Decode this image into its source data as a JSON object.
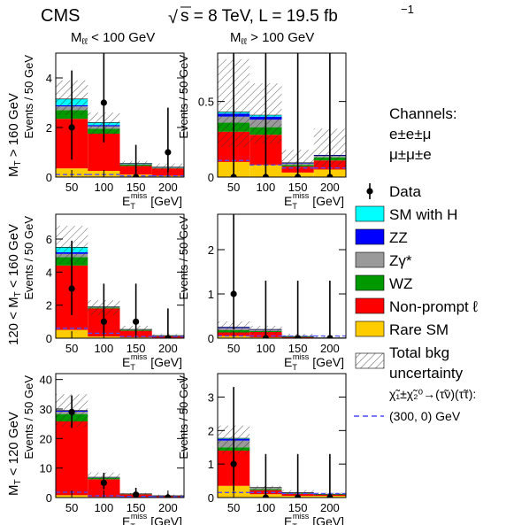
{
  "header": {
    "experiment": "CMS",
    "sqrt_s": "s",
    "energy_lumi": " = 8 TeV, L = 19.5 fb",
    "lumi_exp": "−1"
  },
  "columns": [
    {
      "label_main": "M",
      "label_sub": "ℓℓ",
      "label_rest": " < 100 GeV"
    },
    {
      "label_main": "M",
      "label_sub": "ℓℓ",
      "label_rest": " > 100 GeV"
    }
  ],
  "rows": [
    {
      "label_pre": "M",
      "label_sub": "T",
      "label_post": " > 160 GeV"
    },
    {
      "label_pre": "120 < M",
      "label_sub": "T",
      "label_post": " < 160 GeV"
    },
    {
      "label_pre": "M",
      "label_sub": "T",
      "label_post": " < 120 GeV"
    }
  ],
  "axes": {
    "ylabel": "Events / 50 GeV",
    "xlabel_main": "E",
    "xlabel_sub": "T",
    "xlabel_sup": "miss",
    "xlabel_unit": " [GeV]"
  },
  "channels": {
    "title": "Channels:",
    "line1": "e±e±μ",
    "line2": "μ±μ±e"
  },
  "legend": [
    {
      "key": "data",
      "label": "Data",
      "kind": "marker",
      "color": "#000000"
    },
    {
      "key": "smh",
      "label": "SM with H",
      "kind": "box",
      "color": "#00ffff"
    },
    {
      "key": "zz",
      "label": "ZZ",
      "kind": "box",
      "color": "#0000ff"
    },
    {
      "key": "zg",
      "label": "Zγ*",
      "kind": "box",
      "color": "#9a9a9a"
    },
    {
      "key": "wz",
      "label": "WZ",
      "kind": "box",
      "color": "#009900"
    },
    {
      "key": "np",
      "label": "Non-prompt ℓ",
      "kind": "box",
      "color": "#ff0000"
    },
    {
      "key": "rare",
      "label": "Rare SM",
      "kind": "box",
      "color": "#ffcc00"
    },
    {
      "key": "unc",
      "label": "Total bkg",
      "label2": "uncertainty",
      "kind": "hatch",
      "color": "#000000"
    }
  ],
  "signal": {
    "line1": "χ̃₁±χ̃₂⁰→(τ̃ν)(τ̃τ):",
    "line2": "(300, 0) GeV",
    "color": "#4d4dff"
  },
  "chart_data": {
    "type": "bar",
    "stacked": true,
    "x_bin_edges": [
      25,
      75,
      125,
      175,
      225
    ],
    "x_ticks": [
      50,
      100,
      150,
      200
    ],
    "stack_order": [
      "rare",
      "np",
      "wz",
      "zg",
      "zz",
      "smh"
    ],
    "colors": {
      "rare": "#ffcc00",
      "np": "#ff0000",
      "wz": "#009900",
      "zg": "#9a9a9a",
      "zz": "#0000ff",
      "smh": "#00ffff"
    },
    "panels": [
      {
        "row": 0,
        "col": 0,
        "ylim": [
          0,
          5
        ],
        "yticks": [
          0,
          2,
          4
        ],
        "stack": {
          "rare": [
            0.35,
            0.25,
            0.1,
            0.05
          ],
          "np": [
            2.0,
            1.5,
            0.35,
            0.3
          ],
          "wz": [
            0.35,
            0.2,
            0.05,
            0.02
          ],
          "zg": [
            0.15,
            0.1,
            0.02,
            0.01
          ],
          "zz": [
            0.05,
            0.05,
            0.01,
            0.01
          ],
          "smh": [
            0.25,
            0.1,
            0.02,
            0.01
          ]
        },
        "unc_lo": [
          2.5,
          1.7,
          0.4,
          0.3
        ],
        "unc_hi": [
          3.9,
          2.6,
          0.65,
          0.55
        ],
        "data": [
          2,
          3,
          0,
          1
        ],
        "err_lo": [
          1.3,
          1.6,
          0,
          0.8
        ],
        "err_hi": [
          2.3,
          2.4,
          1.3,
          1.8
        ],
        "signal": [
          0.1,
          0.1,
          0.05,
          0.05
        ]
      },
      {
        "row": 0,
        "col": 1,
        "ylim": [
          0,
          0.82
        ],
        "yticks": [
          0,
          0.5
        ],
        "stack": {
          "rare": [
            0.1,
            0.08,
            0.03,
            0.05
          ],
          "np": [
            0.2,
            0.2,
            0.04,
            0.06
          ],
          "wz": [
            0.06,
            0.05,
            0.01,
            0.02
          ],
          "zg": [
            0.04,
            0.05,
            0.01,
            0.01
          ],
          "zz": [
            0.02,
            0.02,
            0.005,
            0.005
          ],
          "smh": [
            0.01,
            0.01,
            0.0,
            0.0
          ]
        },
        "unc_lo": [
          0.2,
          0.22,
          0.05,
          0.07
        ],
        "unc_hi": [
          0.78,
          0.62,
          0.18,
          0.32
        ],
        "data": [
          0,
          0,
          0,
          0
        ],
        "err_lo": [
          0,
          0,
          0,
          0
        ],
        "err_hi": [
          1.8,
          1.8,
          1.8,
          1.8
        ],
        "signal": [
          0.11,
          0.08,
          0.06,
          0.06
        ]
      },
      {
        "row": 1,
        "col": 0,
        "ylim": [
          0,
          7.5
        ],
        "yticks": [
          0,
          2,
          4,
          6
        ],
        "stack": {
          "rare": [
            0.5,
            0.1,
            0.05,
            0.02
          ],
          "np": [
            3.9,
            1.7,
            0.4,
            0.1
          ],
          "wz": [
            0.5,
            0.05,
            0.05,
            0.02
          ],
          "zg": [
            0.2,
            0.02,
            0.01,
            0.01
          ],
          "zz": [
            0.1,
            0.01,
            0.01,
            0.01
          ],
          "smh": [
            0.3,
            0.02,
            0.01,
            0.0
          ]
        },
        "unc_lo": [
          4.5,
          1.4,
          0.4,
          0.1
        ],
        "unc_hi": [
          6.8,
          2.3,
          0.75,
          0.25
        ],
        "data": [
          3,
          1,
          1,
          0
        ],
        "err_lo": [
          1.6,
          0.8,
          0.8,
          0
        ],
        "err_hi": [
          2.9,
          2.3,
          2.3,
          1.8
        ],
        "signal": [
          0.6,
          0.3,
          0.1,
          0.1
        ]
      },
      {
        "row": 1,
        "col": 1,
        "ylim": [
          0,
          2.8
        ],
        "yticks": [
          0,
          1,
          2
        ],
        "stack": {
          "rare": [
            0.05,
            0.02,
            0.01,
            0.01
          ],
          "np": [
            0.08,
            0.12,
            0.01,
            0.0
          ],
          "wz": [
            0.05,
            0.02,
            0.01,
            0.0
          ],
          "zg": [
            0.05,
            0.03,
            0.01,
            0.0
          ],
          "zz": [
            0.02,
            0.01,
            0.0,
            0.0
          ],
          "smh": [
            0.0,
            0.0,
            0.0,
            0.0
          ]
        },
        "unc_lo": [
          0.1,
          0.1,
          0.02,
          0.0
        ],
        "unc_hi": [
          0.38,
          0.28,
          0.1,
          0.05
        ],
        "data": [
          1,
          0,
          0,
          0
        ],
        "err_lo": [
          0.8,
          0,
          0,
          0
        ],
        "err_hi": [
          2.3,
          1.3,
          1.3,
          1.3
        ],
        "signal": [
          0.05,
          0.05,
          0.05,
          0.05
        ]
      },
      {
        "row": 2,
        "col": 0,
        "ylim": [
          0,
          42
        ],
        "yticks": [
          0,
          10,
          20,
          30,
          40
        ],
        "stack": {
          "rare": [
            0.8,
            0.2,
            0.1,
            0.05
          ],
          "np": [
            25.0,
            6.0,
            1.0,
            0.5
          ],
          "wz": [
            2.5,
            0.5,
            0.1,
            0.05
          ],
          "zg": [
            0.8,
            0.1,
            0.05,
            0.02
          ],
          "zz": [
            0.3,
            0.1,
            0.02,
            0.01
          ],
          "smh": [
            0.1,
            0.0,
            0.0,
            0.0
          ]
        },
        "unc_lo": [
          24.0,
          6.0,
          0.9,
          0.4
        ],
        "unc_hi": [
          35.0,
          8.5,
          1.6,
          1.0
        ],
        "data": [
          29,
          5,
          1,
          0
        ],
        "err_lo": [
          5.4,
          2.2,
          0.8,
          0
        ],
        "err_hi": [
          5.6,
          3.4,
          2.3,
          1.3
        ],
        "signal": [
          1.8,
          0.6,
          0.4,
          0.3
        ]
      },
      {
        "row": 2,
        "col": 1,
        "ylim": [
          0,
          3.7
        ],
        "yticks": [
          0,
          1,
          2,
          3
        ],
        "stack": {
          "rare": [
            0.35,
            0.1,
            0.05,
            0.05
          ],
          "np": [
            1.05,
            0.12,
            0.06,
            0.03
          ],
          "wz": [
            0.1,
            0.03,
            0.02,
            0.01
          ],
          "zg": [
            0.2,
            0.05,
            0.02,
            0.01
          ],
          "zz": [
            0.05,
            0.0,
            0.0,
            0.0
          ],
          "smh": [
            0.02,
            0.0,
            0.0,
            0.0
          ]
        },
        "unc_lo": [
          1.3,
          0.2,
          0.1,
          0.05
        ],
        "unc_hi": [
          2.15,
          0.35,
          0.22,
          0.15
        ],
        "data": [
          1,
          0,
          0,
          0
        ],
        "err_lo": [
          0.8,
          0,
          0,
          0
        ],
        "err_hi": [
          2.3,
          1.3,
          1.3,
          1.3
        ],
        "signal": [
          0.15,
          0.15,
          0.12,
          0.12
        ]
      }
    ]
  }
}
